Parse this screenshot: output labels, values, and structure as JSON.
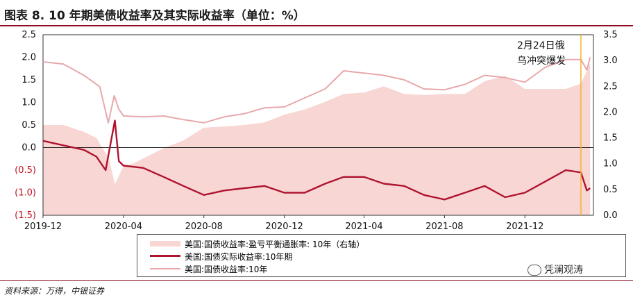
{
  "title": "图表 8. 10 年期美债收益率及其实际收益率（单位：%）",
  "source": "资料来源：万得，中银证券",
  "watermark": "凭澜观涛",
  "chart_data": {
    "type": "line",
    "x_ticks": [
      "2019-12",
      "2020-04",
      "2020-08",
      "2020-12",
      "2021-04",
      "2021-08",
      "2021-12"
    ],
    "x_range": [
      "2019-12",
      "2022-03"
    ],
    "y_left": {
      "ticks": [
        2.5,
        2.0,
        1.5,
        1.0,
        0.5,
        0.0,
        -0.5,
        -1.0,
        -1.5
      ],
      "tick_labels": [
        "2.5",
        "2.0",
        "1.5",
        "1.0",
        "0.5",
        "0.0",
        "(0.5)",
        "(1.0)",
        "(1.5)"
      ],
      "negative_color": "#c0101e",
      "range": [
        -1.5,
        2.5
      ]
    },
    "y_right": {
      "ticks": [
        3.5,
        3.0,
        2.5,
        2.0,
        1.5,
        1.0,
        0.5,
        0.0
      ],
      "tick_labels": [
        "3.5",
        "3.0",
        "2.5",
        "2.0",
        "1.5",
        "1.0",
        "0.5",
        "0.0"
      ],
      "range": [
        0.0,
        3.5
      ]
    },
    "annotation": {
      "lines": [
        "2月24日俄",
        "乌冲突爆发"
      ],
      "date": "2022-02-24",
      "line_color": "#f5b324"
    },
    "series": [
      {
        "name": "美国:国债收益率:盈亏平衡通胀率: 10年（右轴）",
        "kind": "area",
        "axis": "right",
        "color": "#f7d6d4",
        "points": [
          [
            "2019-12-01",
            1.75
          ],
          [
            "2020-01-01",
            1.75
          ],
          [
            "2020-02-01",
            1.62
          ],
          [
            "2020-02-20",
            1.5
          ],
          [
            "2020-03-10",
            1.1
          ],
          [
            "2020-03-19",
            0.6
          ],
          [
            "2020-04-01",
            0.95
          ],
          [
            "2020-04-15",
            1.0
          ],
          [
            "2020-05-01",
            1.1
          ],
          [
            "2020-06-01",
            1.3
          ],
          [
            "2020-07-01",
            1.45
          ],
          [
            "2020-08-01",
            1.7
          ],
          [
            "2020-09-01",
            1.72
          ],
          [
            "2020-10-01",
            1.75
          ],
          [
            "2020-11-01",
            1.8
          ],
          [
            "2020-12-01",
            1.95
          ],
          [
            "2021-01-01",
            2.05
          ],
          [
            "2021-02-01",
            2.2
          ],
          [
            "2021-03-01",
            2.35
          ],
          [
            "2021-04-01",
            2.38
          ],
          [
            "2021-05-01",
            2.5
          ],
          [
            "2021-06-01",
            2.35
          ],
          [
            "2021-07-01",
            2.33
          ],
          [
            "2021-08-01",
            2.35
          ],
          [
            "2021-09-01",
            2.35
          ],
          [
            "2021-10-01",
            2.6
          ],
          [
            "2021-11-01",
            2.7
          ],
          [
            "2021-12-01",
            2.45
          ],
          [
            "2022-01-01",
            2.45
          ],
          [
            "2022-02-01",
            2.45
          ],
          [
            "2022-02-24",
            2.55
          ],
          [
            "2022-03-10",
            2.95
          ]
        ]
      },
      {
        "name": "美国:国债实际收益率:10年期",
        "kind": "line",
        "axis": "left",
        "color": "#b0132d",
        "points": [
          [
            "2019-12-01",
            0.15
          ],
          [
            "2020-01-01",
            0.05
          ],
          [
            "2020-02-01",
            -0.05
          ],
          [
            "2020-02-20",
            -0.2
          ],
          [
            "2020-03-05",
            -0.5
          ],
          [
            "2020-03-19",
            0.6
          ],
          [
            "2020-03-25",
            -0.3
          ],
          [
            "2020-04-01",
            -0.4
          ],
          [
            "2020-05-01",
            -0.45
          ],
          [
            "2020-06-01",
            -0.65
          ],
          [
            "2020-07-01",
            -0.85
          ],
          [
            "2020-08-01",
            -1.05
          ],
          [
            "2020-09-01",
            -0.95
          ],
          [
            "2020-10-01",
            -0.9
          ],
          [
            "2020-11-01",
            -0.85
          ],
          [
            "2020-12-01",
            -1.0
          ],
          [
            "2021-01-01",
            -1.0
          ],
          [
            "2021-02-01",
            -0.8
          ],
          [
            "2021-03-01",
            -0.65
          ],
          [
            "2021-04-01",
            -0.65
          ],
          [
            "2021-05-01",
            -0.8
          ],
          [
            "2021-06-01",
            -0.85
          ],
          [
            "2021-07-01",
            -1.05
          ],
          [
            "2021-08-01",
            -1.15
          ],
          [
            "2021-09-01",
            -1.0
          ],
          [
            "2021-10-01",
            -0.85
          ],
          [
            "2021-11-01",
            -1.1
          ],
          [
            "2021-12-01",
            -1.0
          ],
          [
            "2022-01-01",
            -0.75
          ],
          [
            "2022-02-01",
            -0.5
          ],
          [
            "2022-02-24",
            -0.55
          ],
          [
            "2022-03-05",
            -0.95
          ],
          [
            "2022-03-10",
            -0.9
          ]
        ]
      },
      {
        "name": "美国:国债收益率:10年",
        "kind": "line",
        "axis": "left",
        "color": "#e8a8ab",
        "points": [
          [
            "2019-12-01",
            1.9
          ],
          [
            "2020-01-01",
            1.85
          ],
          [
            "2020-02-01",
            1.6
          ],
          [
            "2020-02-25",
            1.35
          ],
          [
            "2020-03-09",
            0.55
          ],
          [
            "2020-03-18",
            1.15
          ],
          [
            "2020-03-25",
            0.85
          ],
          [
            "2020-04-01",
            0.7
          ],
          [
            "2020-05-01",
            0.68
          ],
          [
            "2020-06-01",
            0.7
          ],
          [
            "2020-07-01",
            0.62
          ],
          [
            "2020-08-01",
            0.55
          ],
          [
            "2020-09-01",
            0.68
          ],
          [
            "2020-10-01",
            0.75
          ],
          [
            "2020-11-01",
            0.88
          ],
          [
            "2020-12-01",
            0.9
          ],
          [
            "2021-01-01",
            1.1
          ],
          [
            "2021-02-01",
            1.3
          ],
          [
            "2021-03-01",
            1.7
          ],
          [
            "2021-04-01",
            1.65
          ],
          [
            "2021-05-01",
            1.6
          ],
          [
            "2021-06-01",
            1.5
          ],
          [
            "2021-07-01",
            1.3
          ],
          [
            "2021-08-01",
            1.28
          ],
          [
            "2021-09-01",
            1.4
          ],
          [
            "2021-10-01",
            1.6
          ],
          [
            "2021-11-01",
            1.55
          ],
          [
            "2021-12-01",
            1.45
          ],
          [
            "2022-01-01",
            1.78
          ],
          [
            "2022-02-01",
            1.95
          ],
          [
            "2022-02-24",
            1.95
          ],
          [
            "2022-03-05",
            1.72
          ],
          [
            "2022-03-10",
            2.0
          ]
        ]
      }
    ]
  }
}
